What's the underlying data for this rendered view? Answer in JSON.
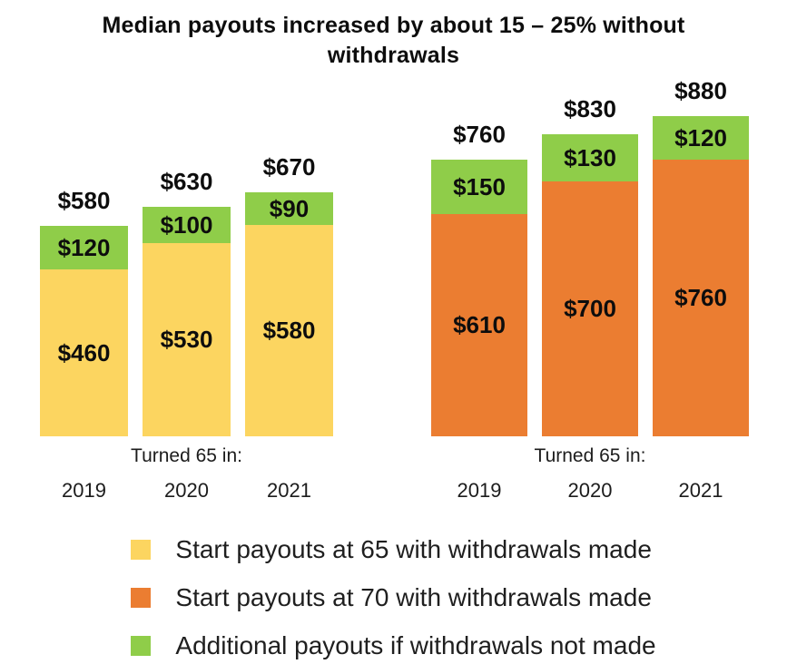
{
  "title": "Median payouts increased by about 15 – 25% without withdrawals",
  "chart_data": {
    "type": "bar",
    "stacked": true,
    "value_prefix": "$",
    "axis_label": "Turned 65 in:",
    "categories": [
      "2019",
      "2020",
      "2021"
    ],
    "ylim": [
      0,
      880
    ],
    "grid": false,
    "legend_position": "bottom",
    "groups": [
      {
        "id": "start-payouts-65",
        "base_series": "Start payouts at 65 with withdrawals made",
        "color": "#FCD560",
        "bars": [
          {
            "year": "2019",
            "base": 460,
            "additional": 120,
            "total": 580
          },
          {
            "year": "2020",
            "base": 530,
            "additional": 100,
            "total": 630
          },
          {
            "year": "2021",
            "base": 580,
            "additional": 90,
            "total": 670
          }
        ]
      },
      {
        "id": "start-payouts-70",
        "base_series": "Start payouts at 70 with withdrawals made",
        "color": "#EB7D31",
        "bars": [
          {
            "year": "2019",
            "base": 610,
            "additional": 150,
            "total": 760
          },
          {
            "year": "2020",
            "base": 700,
            "additional": 130,
            "total": 830
          },
          {
            "year": "2021",
            "base": 760,
            "additional": 120,
            "total": 880
          }
        ]
      }
    ],
    "additional_series": "Additional payouts if withdrawals not made",
    "additional_color": "#8FCD49",
    "legend": [
      {
        "label": "Start payouts at 65 with withdrawals made",
        "color": "#FCD560"
      },
      {
        "label": "Start payouts at 70 with withdrawals made",
        "color": "#EB7D31"
      },
      {
        "label": "Additional payouts if withdrawals not made",
        "color": "#8FCD49"
      }
    ]
  }
}
